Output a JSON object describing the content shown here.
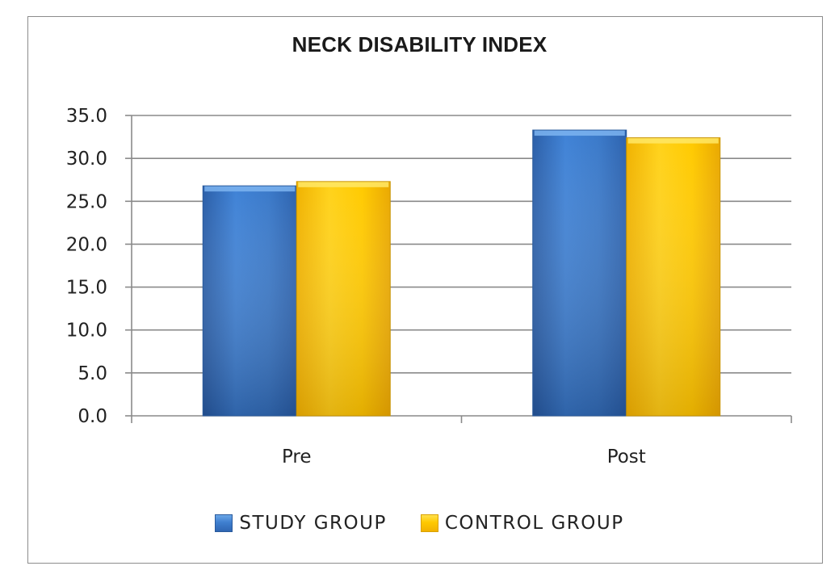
{
  "chart_data": {
    "type": "bar",
    "title": "NECK DISABILITY  INDEX",
    "xlabel": "",
    "ylabel": "",
    "categories": [
      "Pre",
      "Post"
    ],
    "series": [
      {
        "name": "STUDY GROUP",
        "values": [
          26.8,
          33.3
        ],
        "color": "#3b7bd0"
      },
      {
        "name": "CONTROL GROUP",
        "values": [
          27.3,
          32.4
        ],
        "color": "#ffc800"
      }
    ],
    "ylim": [
      0,
      35
    ],
    "yticks": [
      "0.0",
      "5.0",
      "10.0",
      "15.0",
      "20.0",
      "25.0",
      "30.0",
      "35.0"
    ],
    "grid": true,
    "legend": "bottom"
  }
}
